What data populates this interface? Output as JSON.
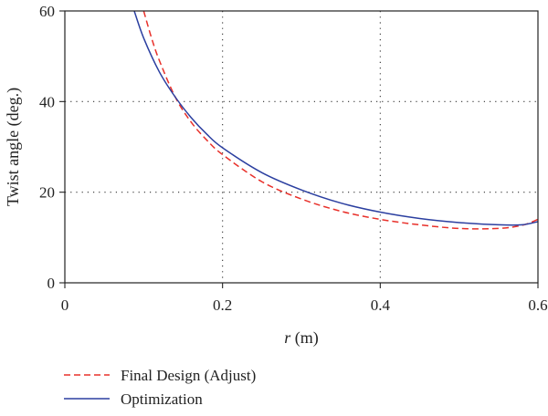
{
  "chart_data": {
    "type": "line",
    "title": "",
    "xlabel_italic": "r",
    "xlabel_rest": " (m)",
    "ylabel": "Twist angle (deg.)",
    "xlim": [
      0,
      0.6
    ],
    "ylim": [
      0,
      60
    ],
    "x_ticks": [
      0,
      0.2,
      0.4,
      0.6
    ],
    "x_tick_labels": [
      "0",
      "0.2",
      "0.4",
      "0.6"
    ],
    "y_ticks": [
      0,
      20,
      40,
      60
    ],
    "y_tick_labels": [
      "0",
      "20",
      "40",
      "60"
    ],
    "grid": "dotted",
    "legend_position": "bottom-left, below plot",
    "series": [
      {
        "name": "Final Design (Adjust)",
        "color": "#e8302a",
        "style": "dashed",
        "x": [
          0.1,
          0.11,
          0.12,
          0.14,
          0.16,
          0.18,
          0.2,
          0.25,
          0.3,
          0.35,
          0.4,
          0.45,
          0.5,
          0.55,
          0.58,
          0.6
        ],
        "y": [
          60,
          54,
          49,
          41,
          35.5,
          31.5,
          28.3,
          22.3,
          18.5,
          15.8,
          14.0,
          12.8,
          12.0,
          12.0,
          12.7,
          14.0
        ]
      },
      {
        "name": "Optimization",
        "color": "#2b3fa0",
        "style": "solid",
        "x": [
          0.088,
          0.1,
          0.12,
          0.14,
          0.16,
          0.18,
          0.2,
          0.25,
          0.3,
          0.35,
          0.4,
          0.45,
          0.5,
          0.55,
          0.58,
          0.6
        ],
        "y": [
          60,
          54,
          46.5,
          41,
          36.5,
          32.8,
          29.8,
          24.3,
          20.5,
          17.6,
          15.6,
          14.2,
          13.3,
          12.8,
          12.8,
          13.5
        ]
      }
    ]
  }
}
